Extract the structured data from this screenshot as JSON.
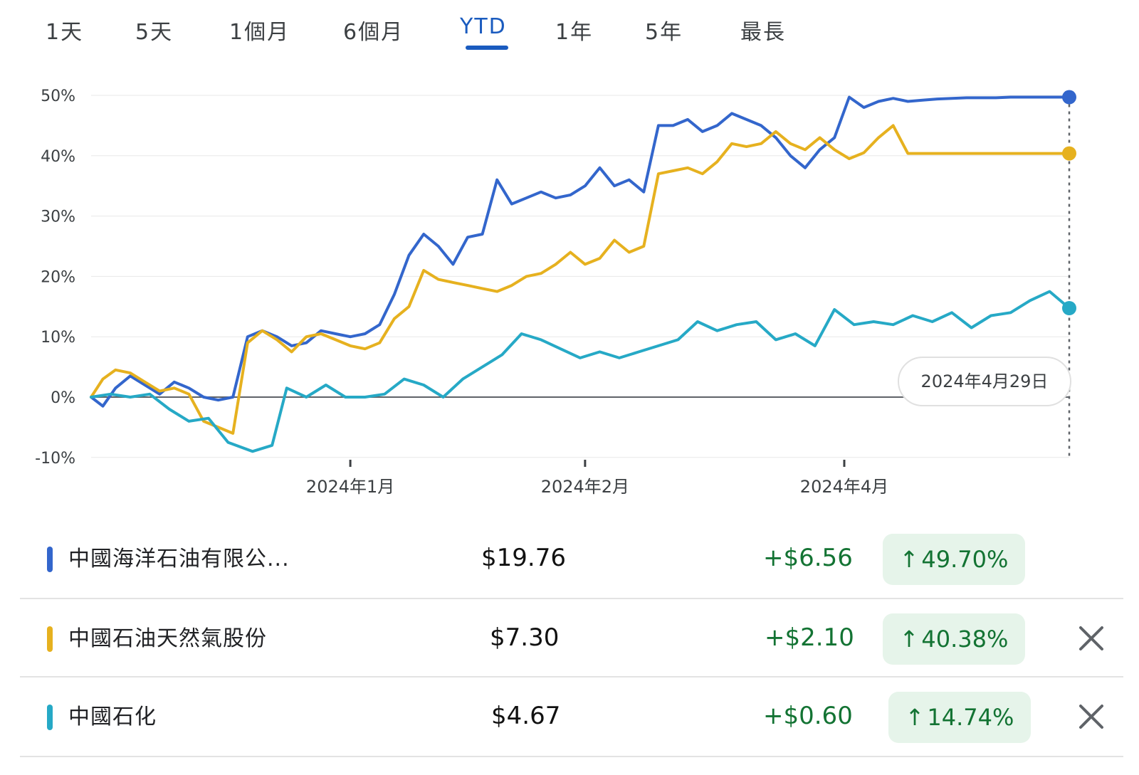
{
  "tabs": [
    {
      "label": "1天"
    },
    {
      "label": "5天"
    },
    {
      "label": "1個月"
    },
    {
      "label": "6個月"
    },
    {
      "label": "YTD"
    },
    {
      "label": "1年"
    },
    {
      "label": "5年"
    },
    {
      "label": "最長"
    }
  ],
  "active_tab": "YTD",
  "tooltip_date": "2024年4月29日",
  "chart_data": {
    "type": "line",
    "y_ticks": [
      "50%",
      "40%",
      "30%",
      "20%",
      "10%",
      "0%",
      "-10%"
    ],
    "ylim": [
      -10,
      50
    ],
    "x_ticks": [
      {
        "label": "2024年1月",
        "x": 0.265
      },
      {
        "label": "2024年2月",
        "x": 0.505
      },
      {
        "label": "2024年4月",
        "x": 0.77
      }
    ],
    "series": [
      {
        "name": "中國海洋石油有限公...",
        "color": "#3366cc",
        "x": [
          0,
          0.012,
          0.025,
          0.04,
          0.055,
          0.07,
          0.085,
          0.1,
          0.115,
          0.13,
          0.145,
          0.16,
          0.175,
          0.19,
          0.205,
          0.22,
          0.235,
          0.25,
          0.265,
          0.28,
          0.295,
          0.31,
          0.325,
          0.34,
          0.355,
          0.37,
          0.385,
          0.4,
          0.415,
          0.43,
          0.445,
          0.46,
          0.475,
          0.49,
          0.505,
          0.52,
          0.535,
          0.55,
          0.565,
          0.58,
          0.595,
          0.61,
          0.625,
          0.64,
          0.655,
          0.67,
          0.685,
          0.7,
          0.715,
          0.73,
          0.745,
          0.76,
          0.775,
          0.79,
          0.805,
          0.82,
          0.835,
          0.85,
          0.865,
          0.88,
          0.895,
          0.91,
          0.925,
          0.94,
          0.955,
          0.97,
          0.985,
          1.0
        ],
        "values": [
          0,
          -1.5,
          1.5,
          3.5,
          2,
          0.5,
          2.5,
          1.5,
          0,
          -0.5,
          0,
          10,
          11,
          10,
          8.5,
          9,
          11,
          10.5,
          10,
          10.5,
          12,
          17,
          23.5,
          27,
          25,
          22,
          26.5,
          27,
          36,
          32,
          33,
          34,
          33,
          33.5,
          35,
          38,
          35,
          36,
          34,
          45,
          45,
          46,
          44,
          45,
          47,
          46,
          45,
          43,
          40,
          38,
          41,
          43,
          49.7,
          48,
          49,
          49.5,
          49,
          49.2,
          49.4,
          49.5,
          49.6,
          49.6,
          49.6,
          49.7,
          49.7,
          49.7,
          49.7,
          49.7
        ]
      },
      {
        "name": "中國石油天然氣股份",
        "color": "#e6b11f",
        "values": [
          0,
          3,
          4.5,
          4,
          2.5,
          1,
          1.5,
          0.5,
          -4,
          -5,
          -6,
          9,
          11,
          9.5,
          7.5,
          10,
          10.5,
          9.5,
          8.5,
          8,
          9,
          13,
          15,
          21,
          19.5,
          19,
          18.5,
          18,
          17.5,
          18.5,
          20,
          20.5,
          22,
          24,
          22,
          23,
          26,
          24,
          25,
          37,
          37.5,
          38,
          37,
          39,
          42,
          41.5,
          42,
          44,
          42,
          41,
          43,
          41,
          39.5,
          40.5,
          43,
          45,
          40.38,
          40.38,
          40.38,
          40.38,
          40.38,
          40.38,
          40.38,
          40.38,
          40.38,
          40.38,
          40.38,
          40.38
        ],
        "x": [
          0,
          0.012,
          0.025,
          0.04,
          0.055,
          0.07,
          0.085,
          0.1,
          0.115,
          0.13,
          0.145,
          0.16,
          0.175,
          0.19,
          0.205,
          0.22,
          0.235,
          0.25,
          0.265,
          0.28,
          0.295,
          0.31,
          0.325,
          0.34,
          0.355,
          0.37,
          0.385,
          0.4,
          0.415,
          0.43,
          0.445,
          0.46,
          0.475,
          0.49,
          0.505,
          0.52,
          0.535,
          0.55,
          0.565,
          0.58,
          0.595,
          0.61,
          0.625,
          0.64,
          0.655,
          0.67,
          0.685,
          0.7,
          0.715,
          0.73,
          0.745,
          0.76,
          0.775,
          0.79,
          0.805,
          0.82,
          0.835,
          0.85,
          0.865,
          0.88,
          0.895,
          0.91,
          0.925,
          0.94,
          0.955,
          0.97,
          0.985,
          1.0
        ]
      },
      {
        "name": "中國石化",
        "color": "#26a9c6",
        "values": [
          0,
          0.5,
          0,
          0.5,
          -2,
          -4,
          -3.5,
          -7.5,
          -9,
          -8,
          1.5,
          0,
          2,
          0,
          0,
          0.5,
          3,
          2,
          0,
          3,
          5,
          7,
          10.5,
          9.5,
          8,
          6.5,
          7.5,
          6.5,
          7.5,
          8.5,
          9.5,
          12.5,
          11,
          12,
          12.5,
          9.5,
          10.5,
          8.5,
          14.5,
          12,
          12.5,
          12,
          13.5,
          12.5,
          14,
          11.5,
          13.5,
          14,
          16,
          17.5,
          14.74,
          14.74,
          14.74,
          14.74,
          14.74,
          14.74,
          14.74,
          14.74,
          14.74,
          14.74,
          14.74,
          14.74,
          14.74,
          14.74,
          14.74,
          14.74,
          14.74,
          14.74
        ],
        "x": [
          0,
          0.02,
          0.04,
          0.06,
          0.08,
          0.1,
          0.12,
          0.14,
          0.165,
          0.185,
          0.2,
          0.22,
          0.24,
          0.26,
          0.28,
          0.3,
          0.32,
          0.34,
          0.36,
          0.38,
          0.4,
          0.42,
          0.44,
          0.46,
          0.48,
          0.5,
          0.52,
          0.54,
          0.56,
          0.58,
          0.6,
          0.62,
          0.64,
          0.66,
          0.68,
          0.7,
          0.72,
          0.74,
          0.76,
          0.78,
          0.8,
          0.82,
          0.84,
          0.86,
          0.88,
          0.9,
          0.92,
          0.94,
          0.96,
          0.98,
          1.0,
          1.0,
          1.0,
          1.0,
          1.0,
          1.0,
          1.0,
          1.0,
          1.0,
          1.0,
          1.0,
          1.0,
          1.0,
          1.0,
          1.0,
          1.0,
          1.0,
          1.0
        ]
      }
    ]
  },
  "stocks": [
    {
      "name": "中國海洋石油有限公...",
      "color": "#3366cc",
      "price": "$19.76",
      "change": "+$6.56",
      "pct": "49.70%",
      "arrow": "↑",
      "removable": false
    },
    {
      "name": "中國石油天然氣股份",
      "color": "#e6b11f",
      "price": "$7.30",
      "change": "+$2.10",
      "pct": "40.38%",
      "arrow": "↑",
      "removable": true
    },
    {
      "name": "中國石化",
      "color": "#26a9c6",
      "price": "$4.67",
      "change": "+$0.60",
      "pct": "14.74%",
      "arrow": "↑",
      "removable": true
    }
  ]
}
